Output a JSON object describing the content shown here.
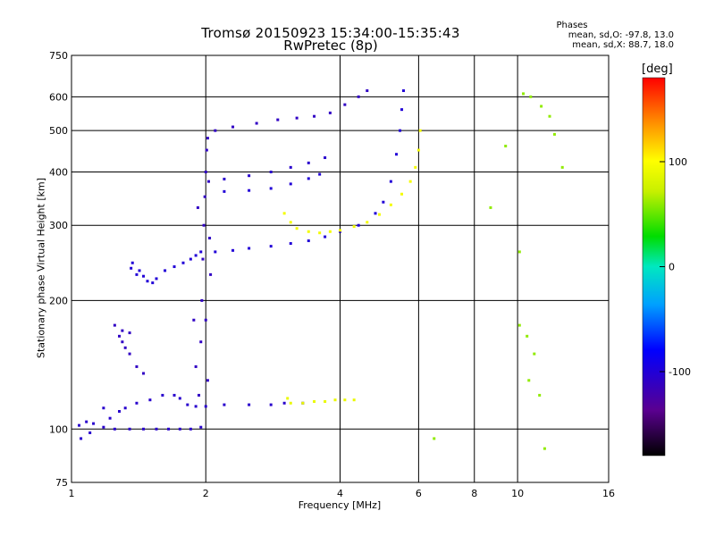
{
  "chart_data": {
    "type": "scatter",
    "title": "Tromsø 20150923 15:34:00-15:35:43",
    "subtitle": "RwPretec (8p)",
    "xlabel": "Frequency [MHz]",
    "ylabel": "Stationary phase Virtual Height [km]",
    "x_scale": "log",
    "y_scale": "log",
    "xlim": [
      1,
      16
    ],
    "ylim": [
      75,
      750
    ],
    "x_ticks": [
      1,
      2,
      4,
      6,
      8,
      10,
      16
    ],
    "x_tick_labels": [
      "1",
      "2",
      "4",
      "6",
      "8",
      "10",
      "16"
    ],
    "y_ticks": [
      75,
      100,
      200,
      300,
      400,
      500,
      600,
      750
    ],
    "y_tick_labels": [
      "75",
      "100",
      "200",
      "300",
      "400",
      "500",
      "600",
      "750"
    ],
    "grid": true,
    "phases": {
      "title": "Phases",
      "o_mode": "mean, sd,O: -97.8, 13.0",
      "x_mode": "mean, sd,X:  88.7, 18.0"
    },
    "colorbar": {
      "unit": "[deg]",
      "range": [
        -180,
        180
      ],
      "ticks": [
        100,
        0,
        -100
      ],
      "tick_labels": [
        "100",
        "0",
        "-100"
      ]
    },
    "series": [
      {
        "points": [
          [
            1.04,
            102
          ],
          [
            1.08,
            104
          ],
          [
            1.12,
            103
          ],
          [
            1.18,
            101
          ],
          [
            1.25,
            100
          ],
          [
            1.35,
            100
          ],
          [
            1.45,
            100
          ],
          [
            1.55,
            100
          ],
          [
            1.65,
            100
          ],
          [
            1.75,
            100
          ],
          [
            1.85,
            100
          ],
          [
            1.95,
            101
          ],
          [
            1.05,
            95
          ],
          [
            1.1,
            98
          ]
        ],
        "phase": -105
      },
      {
        "points": [
          [
            1.18,
            112
          ],
          [
            1.22,
            106
          ],
          [
            1.28,
            110
          ],
          [
            1.32,
            112
          ],
          [
            1.4,
            115
          ],
          [
            1.5,
            117
          ],
          [
            1.6,
            120
          ],
          [
            1.7,
            120
          ],
          [
            1.75,
            118
          ],
          [
            1.82,
            114
          ],
          [
            1.9,
            113
          ],
          [
            2.0,
            113
          ],
          [
            2.2,
            114
          ],
          [
            2.5,
            114
          ],
          [
            2.8,
            114
          ],
          [
            3.0,
            115
          ],
          [
            3.3,
            115
          ]
        ],
        "phase": -105
      },
      {
        "points": [
          [
            1.4,
            230
          ],
          [
            1.42,
            235
          ],
          [
            1.45,
            228
          ],
          [
            1.48,
            222
          ],
          [
            1.52,
            220
          ],
          [
            1.55,
            225
          ],
          [
            1.62,
            235
          ],
          [
            1.7,
            240
          ],
          [
            1.78,
            245
          ],
          [
            1.85,
            250
          ],
          [
            1.9,
            255
          ],
          [
            1.95,
            260
          ],
          [
            1.37,
            245
          ],
          [
            1.36,
            238
          ]
        ],
        "phase": -100
      },
      {
        "points": [
          [
            1.25,
            175
          ],
          [
            1.3,
            160
          ],
          [
            1.35,
            150
          ],
          [
            1.4,
            140
          ],
          [
            1.45,
            135
          ],
          [
            1.28,
            165
          ],
          [
            1.32,
            155
          ],
          [
            1.3,
            170
          ],
          [
            1.35,
            168
          ]
        ],
        "phase": -110
      },
      {
        "points": [
          [
            2.1,
            260
          ],
          [
            2.3,
            262
          ],
          [
            2.5,
            265
          ],
          [
            2.8,
            268
          ],
          [
            3.1,
            272
          ],
          [
            3.4,
            276
          ],
          [
            3.7,
            282
          ],
          [
            4.0,
            290
          ],
          [
            4.4,
            300
          ],
          [
            4.8,
            320
          ],
          [
            5.0,
            340
          ],
          [
            5.2,
            380
          ],
          [
            5.35,
            440
          ],
          [
            5.45,
            500
          ],
          [
            5.5,
            560
          ],
          [
            5.55,
            620
          ]
        ],
        "phase": -100
      },
      {
        "points": [
          [
            2.1,
            500
          ],
          [
            2.3,
            510
          ],
          [
            2.6,
            520
          ],
          [
            2.9,
            530
          ],
          [
            3.2,
            535
          ],
          [
            3.5,
            540
          ],
          [
            3.8,
            550
          ],
          [
            4.1,
            575
          ],
          [
            4.4,
            600
          ],
          [
            4.6,
            620
          ]
        ],
        "phase": -110
      },
      {
        "points": [
          [
            2.2,
            385
          ],
          [
            2.5,
            392
          ],
          [
            2.8,
            400
          ],
          [
            3.1,
            410
          ],
          [
            3.4,
            420
          ],
          [
            3.7,
            432
          ]
        ],
        "phase": -105
      },
      {
        "points": [
          [
            2.2,
            360
          ],
          [
            2.5,
            362
          ],
          [
            2.8,
            366
          ],
          [
            3.1,
            375
          ],
          [
            3.4,
            386
          ],
          [
            3.6,
            395
          ]
        ],
        "phase": -100
      },
      {
        "points": [
          [
            3.0,
            320
          ],
          [
            3.1,
            305
          ],
          [
            3.2,
            295
          ],
          [
            3.4,
            290
          ],
          [
            3.6,
            288
          ],
          [
            3.8,
            290
          ],
          [
            4.0,
            292
          ],
          [
            4.3,
            298
          ],
          [
            4.6,
            305
          ],
          [
            4.9,
            318
          ],
          [
            5.2,
            335
          ],
          [
            5.5,
            355
          ],
          [
            5.75,
            380
          ],
          [
            5.9,
            410
          ],
          [
            6.0,
            450
          ],
          [
            6.05,
            500
          ]
        ],
        "phase": 95
      },
      {
        "points": [
          [
            3.05,
            118
          ],
          [
            3.1,
            115
          ],
          [
            3.3,
            115
          ],
          [
            3.5,
            116
          ],
          [
            3.7,
            116
          ],
          [
            3.9,
            117
          ],
          [
            4.1,
            117
          ],
          [
            4.3,
            117
          ]
        ],
        "phase": 90
      },
      {
        "points": [
          [
            1.93,
            120
          ],
          [
            1.95,
            160
          ],
          [
            1.96,
            200
          ],
          [
            1.97,
            250
          ],
          [
            1.98,
            300
          ],
          [
            1.99,
            350
          ],
          [
            2.0,
            400
          ],
          [
            2.01,
            450
          ],
          [
            2.02,
            480
          ],
          [
            2.03,
            380
          ],
          [
            2.04,
            280
          ],
          [
            2.05,
            230
          ],
          [
            1.9,
            140
          ],
          [
            1.88,
            180
          ],
          [
            1.92,
            330
          ],
          [
            2.0,
            180
          ],
          [
            2.02,
            130
          ]
        ],
        "phase": -110
      },
      {
        "points": [
          [
            10.3,
            610
          ],
          [
            10.7,
            600
          ],
          [
            11.3,
            570
          ],
          [
            11.8,
            540
          ],
          [
            12.1,
            490
          ],
          [
            12.6,
            410
          ],
          [
            9.4,
            460
          ],
          [
            8.7,
            330
          ],
          [
            10.1,
            260
          ],
          [
            10.5,
            165
          ],
          [
            11.2,
            120
          ],
          [
            10.9,
            150
          ],
          [
            10.6,
            130
          ],
          [
            10.1,
            175
          ],
          [
            11.5,
            90
          ],
          [
            6.5,
            95
          ]
        ],
        "phase": 60
      }
    ]
  }
}
